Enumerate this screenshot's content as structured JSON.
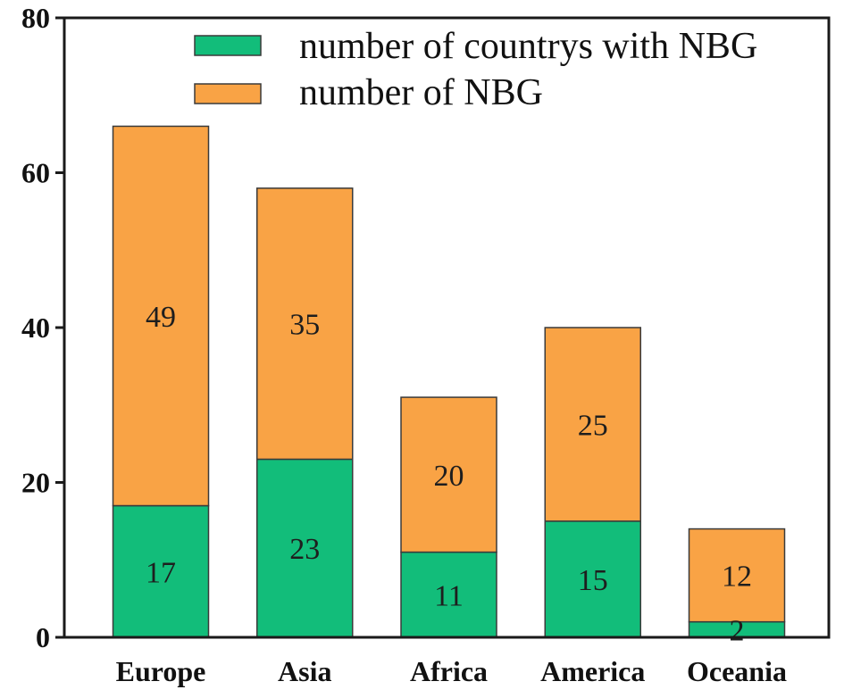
{
  "chart_data": {
    "type": "bar",
    "stacked": true,
    "title": "",
    "xlabel": "",
    "ylabel": "",
    "categories": [
      "Europe",
      "Asia",
      "Africa",
      "America",
      "Oceania"
    ],
    "series": [
      {
        "name": "number of countrys with NBG",
        "values": [
          17,
          23,
          11,
          15,
          2
        ],
        "color": "#12bd7a"
      },
      {
        "name": "number of NBG",
        "values": [
          49,
          35,
          20,
          25,
          12
        ],
        "color": "#f9a345"
      }
    ],
    "ylim": [
      0,
      80
    ],
    "yticks": [
      0,
      20,
      40,
      60,
      80
    ],
    "grid": false,
    "legend": "top",
    "data_labels": true
  }
}
